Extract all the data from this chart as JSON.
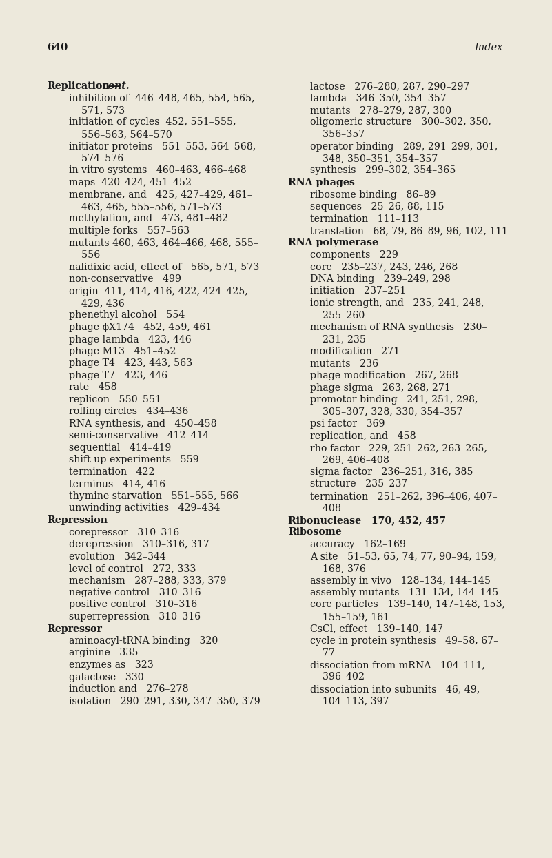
{
  "bg_color": "#ede9dc",
  "page_number": "640",
  "page_title": "Index",
  "left_lines": [
    [
      "Replication—",
      "cont.",
      0
    ],
    [
      "inhibition of  446–448, 465, 554, 565,",
      null,
      1
    ],
    [
      "    571, 573",
      null,
      1
    ],
    [
      "initiation of cycles  452, 551–555,",
      null,
      1
    ],
    [
      "    556–563, 564–570",
      null,
      1
    ],
    [
      "initiator proteins   551–553, 564–568,",
      null,
      1
    ],
    [
      "    574–576",
      null,
      1
    ],
    [
      "in vitro systems   460–463, 466–468",
      null,
      1
    ],
    [
      "maps  420–424, 451–452",
      null,
      1
    ],
    [
      "membrane, and   425, 427–429, 461–",
      null,
      1
    ],
    [
      "    463, 465, 555–556, 571–573",
      null,
      1
    ],
    [
      "methylation, and   473, 481–482",
      null,
      1
    ],
    [
      "multiple forks   557–563",
      null,
      1
    ],
    [
      "mutants 460, 463, 464–466, 468, 555–",
      null,
      1
    ],
    [
      "    556",
      null,
      1
    ],
    [
      "nalidixic acid, effect of   565, 571, 573",
      null,
      1
    ],
    [
      "non-conservative   499",
      null,
      1
    ],
    [
      "origin  411, 414, 416, 422, 424–425,",
      null,
      1
    ],
    [
      "    429, 436",
      null,
      1
    ],
    [
      "phenethyl alcohol   554",
      null,
      1
    ],
    [
      "phage ϕX174   452, 459, 461",
      null,
      1
    ],
    [
      "phage lambda   423, 446",
      null,
      1
    ],
    [
      "phage M13   451–452",
      null,
      1
    ],
    [
      "phage T4   423, 443, 563",
      null,
      1
    ],
    [
      "phage T7   423, 446",
      null,
      1
    ],
    [
      "rate   458",
      null,
      1
    ],
    [
      "replicon   550–551",
      null,
      1
    ],
    [
      "rolling circles   434–436",
      null,
      1
    ],
    [
      "RNA synthesis, and   450–458",
      null,
      1
    ],
    [
      "semi-conservative   412–414",
      null,
      1
    ],
    [
      "sequential   414–419",
      null,
      1
    ],
    [
      "shift up experiments   559",
      null,
      1
    ],
    [
      "termination   422",
      null,
      1
    ],
    [
      "terminus   414, 416",
      null,
      1
    ],
    [
      "thymine starvation   551–555, 566",
      null,
      1
    ],
    [
      "unwinding activities   429–434",
      null,
      1
    ],
    [
      "Repression",
      null,
      0
    ],
    [
      "corepressor   310–316",
      null,
      1
    ],
    [
      "derepression   310–316, 317",
      null,
      1
    ],
    [
      "evolution   342–344",
      null,
      1
    ],
    [
      "level of control   272, 333",
      null,
      1
    ],
    [
      "mechanism   287–288, 333, 379",
      null,
      1
    ],
    [
      "negative control   310–316",
      null,
      1
    ],
    [
      "positive control   310–316",
      null,
      1
    ],
    [
      "superrepression   310–316",
      null,
      1
    ],
    [
      "Repressor",
      null,
      0
    ],
    [
      "aminoacyl-tRNA binding   320",
      null,
      1
    ],
    [
      "arginine   335",
      null,
      1
    ],
    [
      "enzymes as   323",
      null,
      1
    ],
    [
      "galactose   330",
      null,
      1
    ],
    [
      "induction and   276–278",
      null,
      1
    ],
    [
      "isolation   290–291, 330, 347–350, 379",
      null,
      1
    ]
  ],
  "right_lines": [
    [
      "lactose   276–280, 287, 290–297",
      null,
      1
    ],
    [
      "lambda   346–350, 354–357",
      null,
      1
    ],
    [
      "mutants   278–279, 287, 300",
      null,
      1
    ],
    [
      "oligomeric structure   300–302, 350,",
      null,
      1
    ],
    [
      "    356–357",
      null,
      1
    ],
    [
      "operator binding   289, 291–299, 301,",
      null,
      1
    ],
    [
      "    348, 350–351, 354–357",
      null,
      1
    ],
    [
      "synthesis   299–302, 354–365",
      null,
      1
    ],
    [
      "RNA phages",
      null,
      0
    ],
    [
      "ribosome binding   86–89",
      null,
      1
    ],
    [
      "sequences   25–26, 88, 115",
      null,
      1
    ],
    [
      "termination   111–113",
      null,
      1
    ],
    [
      "translation   68, 79, 86–89, 96, 102, 111",
      null,
      1
    ],
    [
      "RNA polymerase",
      null,
      0
    ],
    [
      "components   229",
      null,
      1
    ],
    [
      "core   235–237, 243, 246, 268",
      null,
      1
    ],
    [
      "DNA binding   239–249, 298",
      null,
      1
    ],
    [
      "initiation   237–251",
      null,
      1
    ],
    [
      "ionic strength, and   235, 241, 248,",
      null,
      1
    ],
    [
      "    255–260",
      null,
      1
    ],
    [
      "mechanism of RNA synthesis   230–",
      null,
      1
    ],
    [
      "    231, 235",
      null,
      1
    ],
    [
      "modification   271",
      null,
      1
    ],
    [
      "mutants   236",
      null,
      1
    ],
    [
      "phage modification   267, 268",
      null,
      1
    ],
    [
      "phage sigma   263, 268, 271",
      null,
      1
    ],
    [
      "promotor binding   241, 251, 298,",
      null,
      1
    ],
    [
      "    305–307, 328, 330, 354–357",
      null,
      1
    ],
    [
      "psi factor   369",
      null,
      1
    ],
    [
      "replication, and   458",
      null,
      1
    ],
    [
      "rho factor   229, 251–262, 263–265,",
      null,
      1
    ],
    [
      "    269, 406–408",
      null,
      1
    ],
    [
      "sigma factor   236–251, 316, 385",
      null,
      1
    ],
    [
      "structure   235–237",
      null,
      1
    ],
    [
      "termination   251–262, 396–406, 407–",
      null,
      1
    ],
    [
      "    408",
      null,
      1
    ],
    [
      "Ribonuclease   170, 452, 457",
      null,
      0
    ],
    [
      "Ribosome",
      null,
      0
    ],
    [
      "accuracy   162–169",
      null,
      1
    ],
    [
      "A site   51–53, 65, 74, 77, 90–94, 159,",
      null,
      1
    ],
    [
      "    168, 376",
      null,
      1
    ],
    [
      "assembly in vivo   128–134, 144–145",
      null,
      1
    ],
    [
      "assembly mutants   131–134, 144–145",
      null,
      1
    ],
    [
      "core particles   139–140, 147–148, 153,",
      null,
      1
    ],
    [
      "    155–159, 161",
      null,
      1
    ],
    [
      "CsCl, effect   139–140, 147",
      null,
      1
    ],
    [
      "cycle in protein synthesis   49–58, 67–",
      null,
      1
    ],
    [
      "    77",
      null,
      1
    ],
    [
      "dissociation from mRNA   104–111,",
      null,
      1
    ],
    [
      "    396–402",
      null,
      1
    ],
    [
      "dissociation into subunits   46, 49,",
      null,
      1
    ],
    [
      "    104–113, 397",
      null,
      1
    ]
  ]
}
